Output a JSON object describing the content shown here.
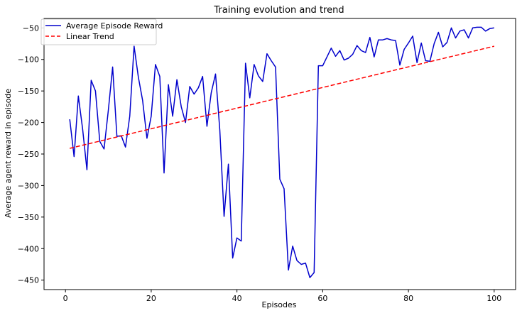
{
  "chart_data": {
    "type": "line",
    "title": "Training evolution and trend",
    "xlabel": "Episodes",
    "ylabel": "Average agent reward in episode",
    "xlim": [
      -5,
      105
    ],
    "ylim": [
      -465,
      -35
    ],
    "xticks": [
      0,
      20,
      40,
      60,
      80,
      100
    ],
    "yticks": [
      -450,
      -400,
      -350,
      -300,
      -250,
      -200,
      -150,
      -100,
      -50
    ],
    "grid": false,
    "legend_position": "top-left",
    "series": [
      {
        "name": "Average Episode Reward",
        "color": "#0000cc",
        "style": "solid",
        "x": [
          1,
          2,
          3,
          4,
          5,
          6,
          7,
          8,
          9,
          10,
          11,
          12,
          13,
          14,
          15,
          16,
          17,
          18,
          19,
          20,
          21,
          22,
          23,
          24,
          25,
          26,
          27,
          28,
          29,
          30,
          31,
          32,
          33,
          34,
          35,
          36,
          37,
          38,
          39,
          40,
          41,
          42,
          43,
          44,
          45,
          46,
          47,
          48,
          49,
          50,
          51,
          52,
          53,
          54,
          55,
          56,
          57,
          58,
          59,
          60,
          61,
          62,
          63,
          64,
          65,
          66,
          67,
          68,
          69,
          70,
          71,
          72,
          73,
          74,
          75,
          76,
          77,
          78,
          79,
          80,
          81,
          82,
          83,
          84,
          85,
          86,
          87,
          88,
          89,
          90,
          91,
          92,
          93,
          94,
          95,
          96,
          97,
          98,
          99,
          100
        ],
        "y": [
          -195,
          -254,
          -158,
          -210,
          -275,
          -133,
          -150,
          -230,
          -242,
          -181,
          -112,
          -222,
          -221,
          -239,
          -190,
          -79,
          -128,
          -165,
          -225,
          -190,
          -108,
          -127,
          -280,
          -140,
          -190,
          -132,
          -175,
          -200,
          -143,
          -155,
          -145,
          -127,
          -206,
          -153,
          -123,
          -212,
          -349,
          -266,
          -415,
          -383,
          -388,
          -106,
          -161,
          -108,
          -126,
          -135,
          -91,
          -102,
          -112,
          -290,
          -305,
          -434,
          -396,
          -419,
          -425,
          -423,
          -446,
          -438,
          -110,
          -110,
          -96,
          -82,
          -95,
          -86,
          -101,
          -98,
          -92,
          -78,
          -86,
          -89,
          -65,
          -96,
          -69,
          -69,
          -67,
          -69,
          -70,
          -109,
          -84,
          -74,
          -63,
          -105,
          -74,
          -102,
          -103,
          -75,
          -57,
          -80,
          -73,
          -50,
          -66,
          -55,
          -53,
          -66,
          -50,
          -49,
          -49,
          -55,
          -51,
          -50
        ]
      },
      {
        "name": "Linear Trend",
        "color": "#ff0000",
        "style": "dashed",
        "x": [
          1,
          100
        ],
        "y": [
          -241,
          -79
        ]
      }
    ]
  }
}
